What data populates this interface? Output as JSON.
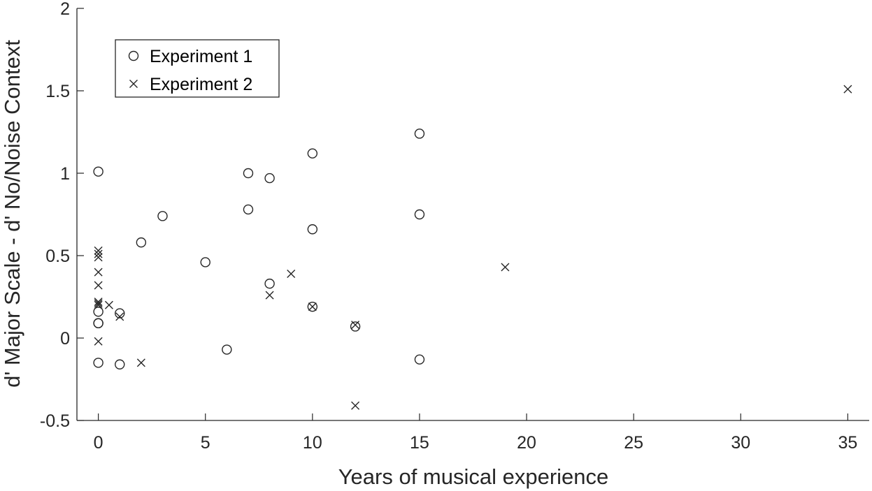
{
  "chart_data": {
    "type": "scatter",
    "title": "",
    "xlabel": "Years of musical experience",
    "ylabel": "d' Major Scale - d' No/Noise Context",
    "xlim": [
      -1,
      36
    ],
    "ylim": [
      -0.5,
      2
    ],
    "xticks": [
      0,
      5,
      10,
      15,
      20,
      25,
      30,
      35
    ],
    "xtick_labels": [
      "0",
      "5",
      "10",
      "15",
      "20",
      "25",
      "30",
      "35"
    ],
    "yticks": [
      -0.5,
      0,
      0.5,
      1,
      1.5,
      2
    ],
    "ytick_labels": [
      "-0.5",
      "0",
      "0.5",
      "1",
      "1.5",
      "2"
    ],
    "grid": false,
    "legend": {
      "placement": "top-left",
      "boxed": true
    },
    "series": [
      {
        "name": "Experiment 1",
        "marker": "circle",
        "color": "#262626",
        "points": [
          [
            0,
            1.01
          ],
          [
            0,
            0.16
          ],
          [
            0,
            0.09
          ],
          [
            0,
            0.09
          ],
          [
            0,
            -0.15
          ],
          [
            1,
            0.15
          ],
          [
            1,
            -0.16
          ],
          [
            2,
            0.58
          ],
          [
            3,
            0.74
          ],
          [
            5,
            0.46
          ],
          [
            6,
            -0.07
          ],
          [
            7,
            1.0
          ],
          [
            7,
            0.78
          ],
          [
            8,
            0.97
          ],
          [
            8,
            0.33
          ],
          [
            10,
            1.12
          ],
          [
            10,
            0.66
          ],
          [
            10,
            0.19
          ],
          [
            12,
            0.07
          ],
          [
            15,
            1.24
          ],
          [
            15,
            0.75
          ],
          [
            15,
            -0.13
          ]
        ]
      },
      {
        "name": "Experiment 2",
        "marker": "x",
        "color": "#262626",
        "points": [
          [
            0,
            0.53
          ],
          [
            0,
            0.51
          ],
          [
            0,
            0.49
          ],
          [
            0,
            0.4
          ],
          [
            0,
            0.32
          ],
          [
            0,
            0.22
          ],
          [
            0,
            0.21
          ],
          [
            0,
            0.2
          ],
          [
            0,
            -0.02
          ],
          [
            0.5,
            0.2
          ],
          [
            1,
            0.13
          ],
          [
            2,
            -0.15
          ],
          [
            8,
            0.26
          ],
          [
            9,
            0.39
          ],
          [
            10,
            0.19
          ],
          [
            12,
            0.08
          ],
          [
            12,
            -0.41
          ],
          [
            19,
            0.43
          ],
          [
            35,
            1.51
          ]
        ]
      }
    ]
  }
}
